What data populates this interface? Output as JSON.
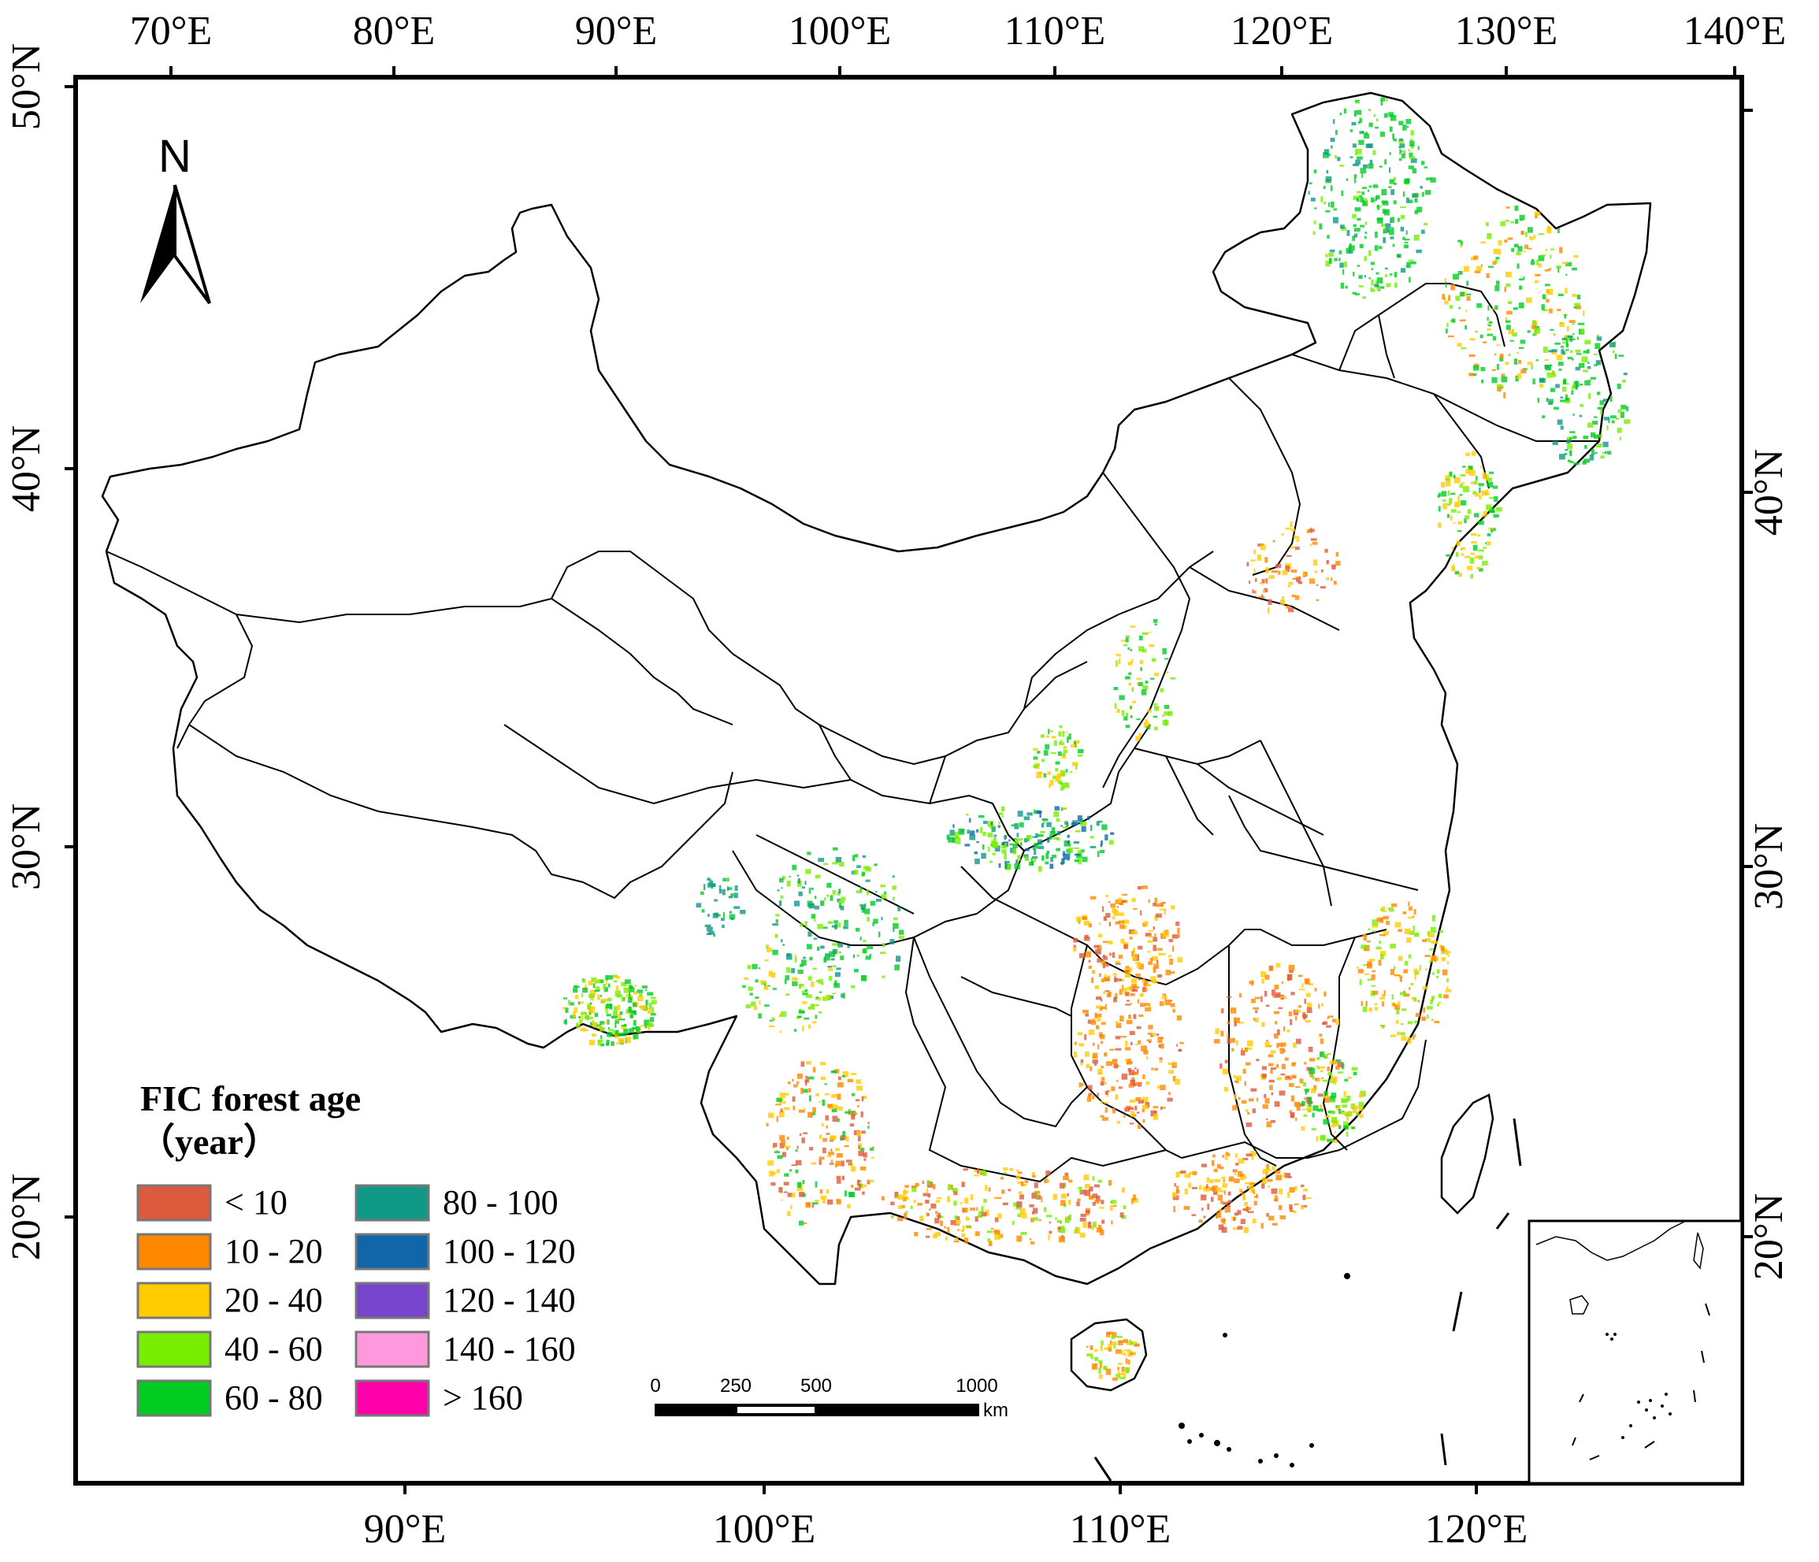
{
  "map": {
    "legend": {
      "title": "FIC forest age",
      "subtitle": "（year）",
      "classes": [
        {
          "label": "< 10",
          "color": "#dd5a3c"
        },
        {
          "label": "10 - 20",
          "color": "#ff8800"
        },
        {
          "label": "20 - 40",
          "color": "#ffcc00"
        },
        {
          "label": "40 - 60",
          "color": "#77ee00"
        },
        {
          "label": "60 - 80",
          "color": "#00cc22"
        },
        {
          "label": "80 - 100",
          "color": "#119988"
        },
        {
          "label": "100 - 120",
          "color": "#1166aa"
        },
        {
          "label": "120 - 140",
          "color": "#7744cc"
        },
        {
          "label": "140 - 160",
          "color": "#ff99dd"
        },
        {
          "label": "> 160",
          "color": "#ff00aa"
        }
      ]
    },
    "north_arrow": {
      "label": "N"
    },
    "scale_bar": {
      "ticks": [
        "0",
        "250",
        "500",
        "1000"
      ],
      "unit": "km"
    },
    "axes": {
      "top_longitudes": [
        "70°E",
        "80°E",
        "90°E",
        "100°E",
        "110°E",
        "120°E",
        "130°E",
        "140°E"
      ],
      "bottom_longitudes": [
        "90°E",
        "100°E",
        "110°E",
        "120°E"
      ],
      "left_latitudes": [
        "50°N",
        "40°N",
        "30°N",
        "20°N"
      ],
      "right_latitudes": [
        "40°N",
        "30°N",
        "20°N"
      ]
    }
  }
}
